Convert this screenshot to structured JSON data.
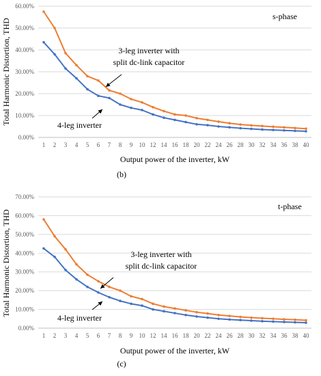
{
  "chart_data": [
    {
      "type": "line",
      "panel_label": "(b)",
      "phase_label": "s-phase",
      "xlabel": "Output power of the inverter, kW",
      "ylabel": "Total Harmonic Distortion, THD",
      "ylim": [
        0,
        60
      ],
      "y_ticks": [
        "0.00%",
        "10.00%",
        "20.00%",
        "30.00%",
        "40.00%",
        "50.00%",
        "60.00%"
      ],
      "x_ticks": [
        "1",
        "2",
        "3",
        "4",
        "5",
        "6",
        "7",
        "8",
        "9",
        "10",
        "12",
        "14",
        "16",
        "18",
        "20",
        "22",
        "24",
        "26",
        "28",
        "30",
        "32",
        "34",
        "36",
        "38",
        "40"
      ],
      "grid": true,
      "annotations": [
        "3-leg inverter with",
        "split dc-link capacitor",
        "4-leg inverter"
      ],
      "colors": {
        "3-leg": "#ED7D31",
        "4-leg": "#4472C4"
      },
      "series": [
        {
          "id": "3-leg",
          "values": [
            57.5,
            50,
            38.5,
            33,
            28,
            26,
            21.5,
            20,
            17.5,
            16,
            13.8,
            12,
            10.5,
            10,
            8.8,
            8,
            7.2,
            6.5,
            5.9,
            5.5,
            5.2,
            4.9,
            4.6,
            4.3,
            4.0
          ]
        },
        {
          "id": "4-leg",
          "values": [
            43.5,
            38,
            31.5,
            27,
            22,
            19,
            18,
            15,
            13.5,
            12.5,
            10.5,
            9,
            8,
            7,
            6,
            5.6,
            5,
            4.6,
            4.2,
            3.9,
            3.6,
            3.4,
            3.2,
            3.0,
            2.8
          ]
        }
      ]
    },
    {
      "type": "line",
      "panel_label": "(c)",
      "phase_label": "t-phase",
      "xlabel": "Output power of the inverter, kW",
      "ylabel": "Total Harmonic Distortion, THD",
      "ylim": [
        0,
        70
      ],
      "y_ticks": [
        "0.00%",
        "10.00%",
        "20.00%",
        "30.00%",
        "40.00%",
        "50.00%",
        "60.00%",
        "70.00%"
      ],
      "x_ticks": [
        "1",
        "2",
        "3",
        "4",
        "5",
        "6",
        "7",
        "8",
        "9",
        "10",
        "12",
        "14",
        "16",
        "18",
        "20",
        "22",
        "24",
        "26",
        "28",
        "30",
        "32",
        "34",
        "36",
        "38",
        "40"
      ],
      "grid": true,
      "annotations": [
        "3-leg inverter with",
        "split dc-link capacitor",
        "4-leg inverter"
      ],
      "colors": {
        "3-leg": "#ED7D31",
        "4-leg": "#4472C4"
      },
      "series": [
        {
          "id": "3-leg",
          "values": [
            58,
            49,
            42,
            34,
            28.5,
            25,
            22,
            20,
            17,
            15.5,
            13,
            11.5,
            10.5,
            9.5,
            8.5,
            7.8,
            7,
            6.5,
            6,
            5.6,
            5.3,
            5,
            4.7,
            4.5,
            4.2
          ]
        },
        {
          "id": "4-leg",
          "values": [
            42.5,
            38,
            31,
            26,
            22,
            19,
            16.5,
            14.5,
            13,
            12,
            10,
            9,
            8,
            7,
            6.2,
            5.6,
            5,
            4.6,
            4.3,
            4,
            3.7,
            3.5,
            3.3,
            3.1,
            2.9
          ]
        }
      ]
    }
  ]
}
